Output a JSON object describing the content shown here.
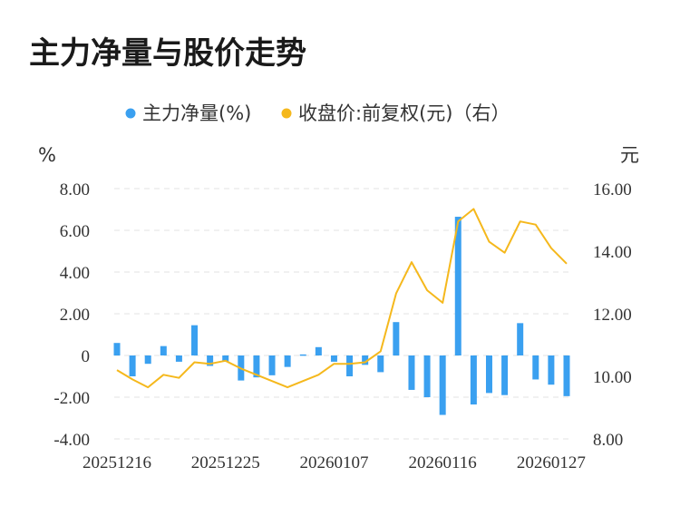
{
  "chart_data": {
    "type": "bar+line",
    "title": "主力净量与股价走势",
    "legend": [
      {
        "name": "主力净量(%)",
        "color": "#3aa0f0"
      },
      {
        "name": "收盘价:前复权(元)（右）",
        "color": "#f5b81c"
      }
    ],
    "y_left_unit": "%",
    "y_right_unit": "元",
    "y_left_ticks": [
      "8.00",
      "6.00",
      "4.00",
      "2.00",
      "0",
      "-2.00",
      "-4.00"
    ],
    "y_right_ticks": [
      "16.00",
      "14.00",
      "12.00",
      "10.00",
      "8.00"
    ],
    "x_tick_labels": [
      "20251216",
      "20251225",
      "20260107",
      "20260116",
      "20260127"
    ],
    "y_left_range": [
      -4,
      8
    ],
    "y_right_range": [
      8,
      16
    ],
    "series": [
      {
        "name": "主力净量(%)",
        "type": "bar",
        "color": "#3aa0f0",
        "values": [
          0.6,
          -1.0,
          -0.4,
          0.45,
          -0.3,
          1.45,
          -0.5,
          -0.3,
          -1.2,
          -1.05,
          -0.95,
          -0.55,
          0.05,
          0.4,
          -0.3,
          -1.0,
          -0.45,
          -0.8,
          1.6,
          -1.65,
          -2.0,
          -2.85,
          6.65,
          -2.35,
          -1.8,
          -1.9,
          1.55,
          -1.15,
          -1.4,
          -1.95
        ]
      },
      {
        "name": "收盘价:前复权(元)（右）",
        "type": "line",
        "color": "#f5b81c",
        "values": [
          10.2,
          9.9,
          9.65,
          10.05,
          9.95,
          10.45,
          10.4,
          10.5,
          10.25,
          10.05,
          9.85,
          9.65,
          9.85,
          10.05,
          10.4,
          10.4,
          10.45,
          10.8,
          12.65,
          13.65,
          12.75,
          12.35,
          14.95,
          15.35,
          14.3,
          13.95,
          14.95,
          14.85,
          14.1,
          13.6
        ]
      }
    ],
    "grid": true
  }
}
